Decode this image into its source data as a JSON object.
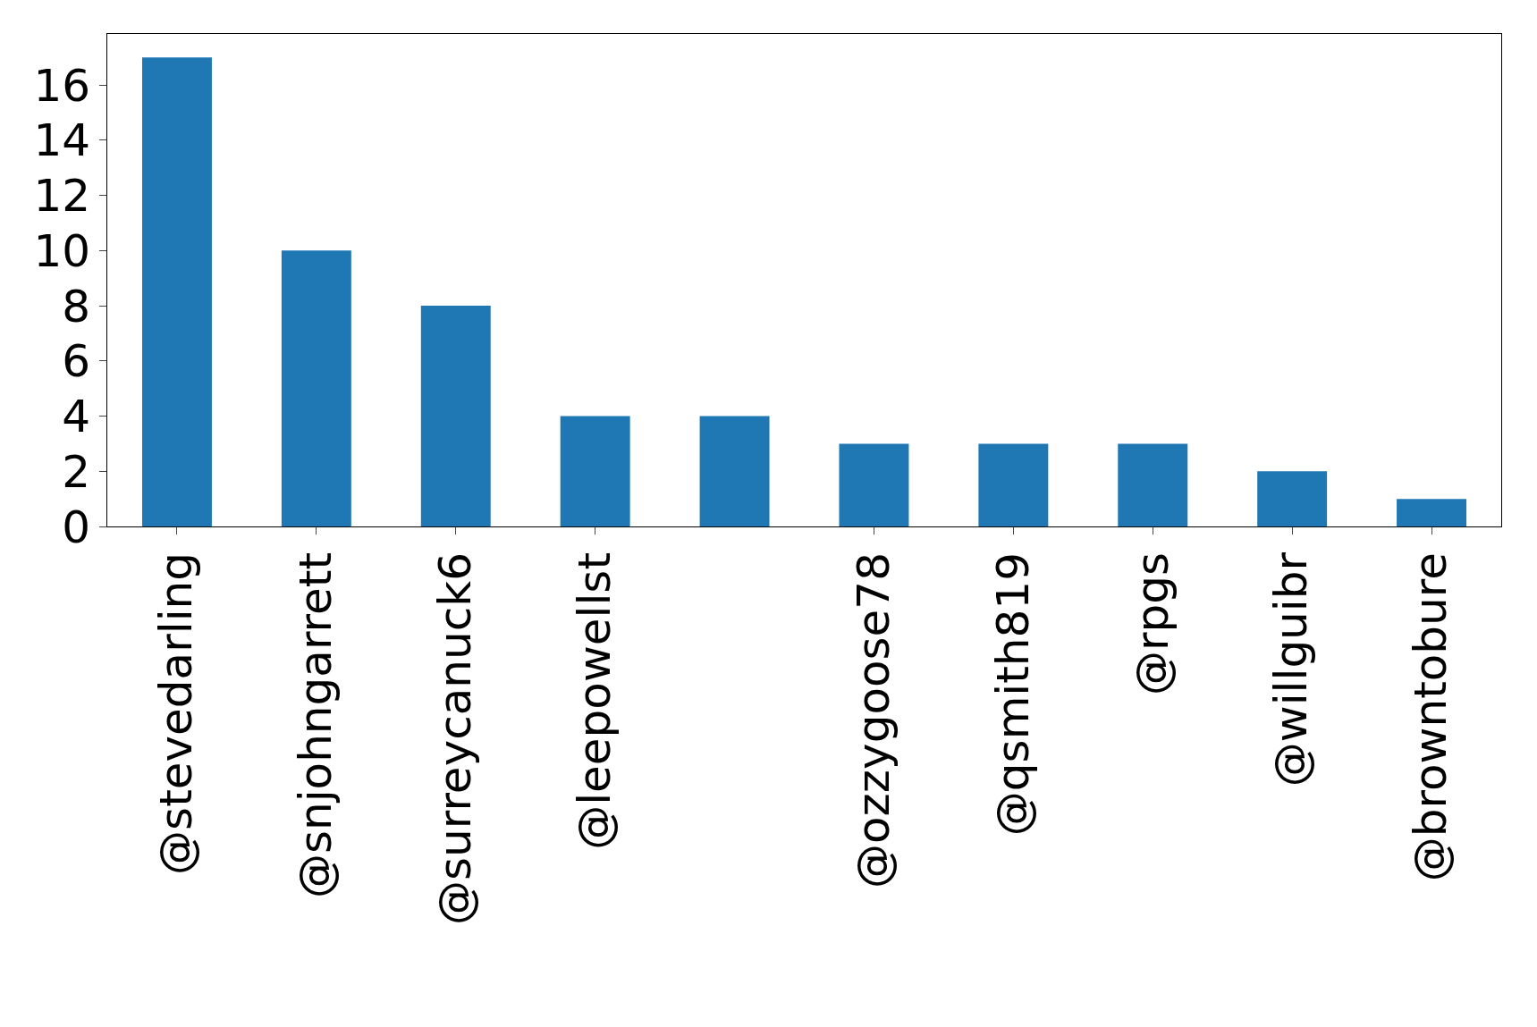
{
  "chart_data": {
    "type": "bar",
    "categories": [
      "@stevedarling",
      "@snjohngarrett",
      "@surreycanuck6",
      "@leepowellst",
      null,
      "@ozzygoose78",
      "@qsmith819",
      "@rpgs",
      "@willguibr",
      "@browntobure"
    ],
    "values": [
      17,
      10,
      8,
      4,
      4,
      3,
      3,
      3,
      2,
      1
    ],
    "color": "#1f77b4",
    "ylim": [
      0,
      17.85
    ],
    "yticks": [
      0,
      2,
      4,
      6,
      8,
      10,
      12,
      14,
      16
    ]
  }
}
